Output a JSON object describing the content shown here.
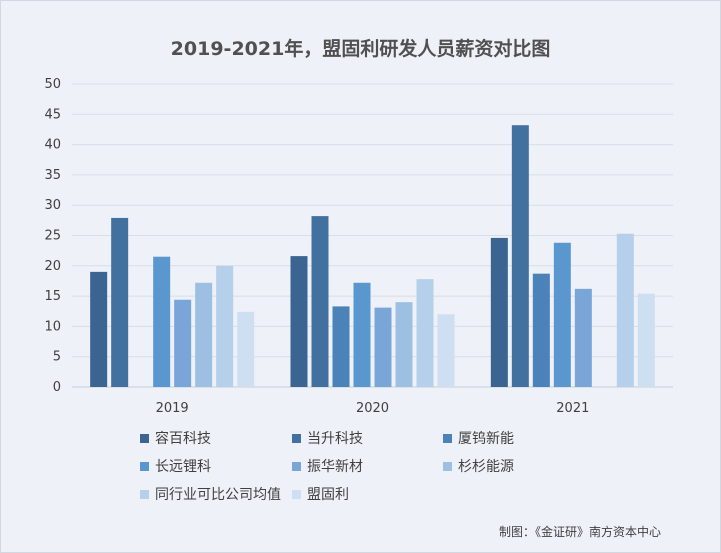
{
  "chart_data": {
    "type": "bar",
    "title": "2019-2021年，盟固利研发人员薪资对比图",
    "xlabel": "",
    "ylabel": "",
    "categories": [
      "2019",
      "2020",
      "2021"
    ],
    "ylim": [
      0,
      50
    ],
    "yticks": [
      0,
      5,
      10,
      15,
      20,
      25,
      30,
      35,
      40,
      45,
      50
    ],
    "grid": true,
    "legend_position": "bottom",
    "series": [
      {
        "name": "容百科技",
        "color": "#3b6590",
        "values": [
          19.0,
          21.6,
          24.6
        ]
      },
      {
        "name": "当升科技",
        "color": "#43719f",
        "values": [
          27.9,
          28.2,
          43.2
        ]
      },
      {
        "name": "厦钨新能",
        "color": "#4a82b9",
        "values": [
          null,
          13.3,
          18.7
        ]
      },
      {
        "name": "长远锂科",
        "color": "#5b97cf",
        "values": [
          21.5,
          17.2,
          23.8
        ]
      },
      {
        "name": "振华新材",
        "color": "#79a6d6",
        "values": [
          14.4,
          13.1,
          16.2
        ]
      },
      {
        "name": "杉杉能源",
        "color": "#9dbfe2",
        "values": [
          17.2,
          14.0,
          null
        ]
      },
      {
        "name": "同行业可比公司均值",
        "color": "#b6cfeb",
        "values": [
          20.0,
          17.8,
          25.3
        ]
      },
      {
        "name": "盟固利",
        "color": "#cfdff2",
        "values": [
          12.4,
          12.0,
          15.4
        ]
      }
    ]
  },
  "source_note": "制图：《金证研》南方资本中心"
}
